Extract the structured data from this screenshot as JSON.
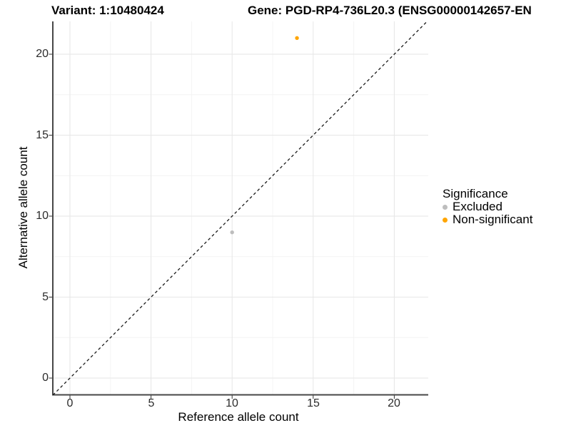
{
  "title": {
    "variant": "Variant: 1:10480424",
    "gene": "Gene: PGD-RP4-736L20.3 (ENSG00000142657-EN"
  },
  "chart_data": {
    "type": "scatter",
    "xlabel": "Reference allele count",
    "ylabel": "Alternative allele count",
    "x_ticks": [
      0,
      5,
      10,
      15,
      20
    ],
    "y_ticks": [
      0,
      5,
      10,
      15,
      20
    ],
    "xlim": [
      -1.1,
      22.1
    ],
    "ylim": [
      -1.05,
      22.05
    ],
    "grid": "major and minor gridlines on, white panel",
    "identity_line": "dashed black y = x reference line",
    "points": [
      {
        "x": 10,
        "y": 9,
        "significance": "Excluded"
      },
      {
        "x": 14,
        "y": 21,
        "significance": "Non-significant"
      }
    ],
    "legend": {
      "title": "Significance",
      "position": "right",
      "entries": [
        {
          "label": "Excluded",
          "color": "#bdbdbd"
        },
        {
          "label": "Non-significant",
          "color": "#ffa500"
        }
      ]
    },
    "colors": {
      "excluded": "#bdbdbd",
      "non_significant": "#ffa500",
      "major_grid": "#e6e6e6",
      "minor_grid": "#f4f4f4",
      "axis_line": "#474747",
      "identity_line": "#1a1a1a"
    }
  }
}
